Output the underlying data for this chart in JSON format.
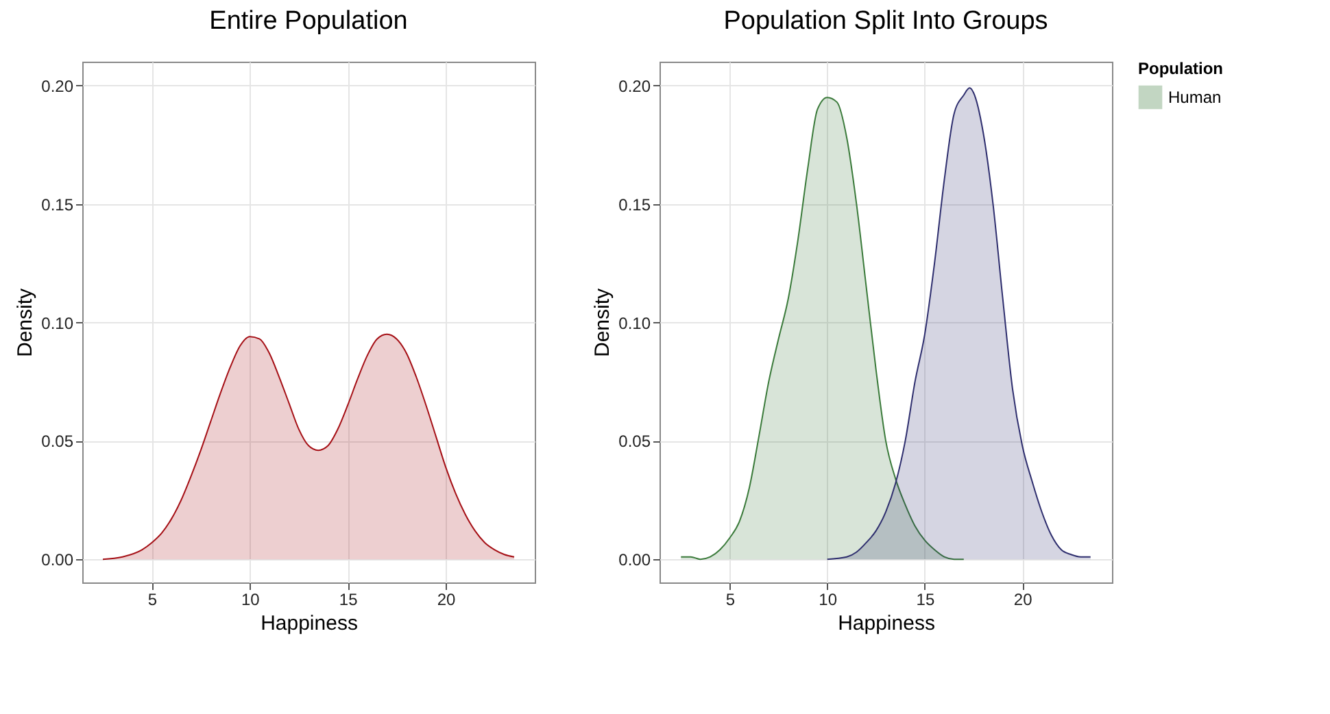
{
  "chart_data": [
    {
      "type": "area",
      "title": "Entire Population",
      "xlabel": "Happiness",
      "ylabel": "Density",
      "grid": true,
      "legend": false,
      "xlim": [
        1.45,
        24.55
      ],
      "ylim": [
        -0.0098,
        0.2101
      ],
      "xticks": [
        5,
        10,
        15,
        20
      ],
      "yticks": [
        {
          "value": 0,
          "label": "0.00"
        },
        {
          "value": 0.05,
          "label": "0.05"
        },
        {
          "value": 0.1,
          "label": "0.10"
        },
        {
          "value": 0.15,
          "label": "0.15"
        },
        {
          "value": 0.2,
          "label": "0.20"
        }
      ],
      "series": [
        {
          "color": "#a50f15",
          "x": [
            2.5,
            3.5,
            4.5,
            5,
            5.5,
            6,
            6.5,
            7,
            7.5,
            8,
            8.5,
            9,
            9.5,
            10,
            10.5,
            11,
            11.5,
            12,
            12.5,
            13,
            13.5,
            14,
            14.5,
            15,
            15.5,
            16,
            16.5,
            17,
            17.5,
            18,
            18.5,
            19,
            19.5,
            20,
            20.5,
            21,
            21.5,
            22,
            22.5,
            23,
            23.5
          ],
          "values": [
            0,
            0.001,
            0.004,
            0.007,
            0.011,
            0.017,
            0.025,
            0.035,
            0.046,
            0.058,
            0.07,
            0.081,
            0.09,
            0.094,
            0.093,
            0.087,
            0.077,
            0.066,
            0.055,
            0.048,
            0.046,
            0.048,
            0.055,
            0.065,
            0.076,
            0.086,
            0.093,
            0.095,
            0.093,
            0.087,
            0.077,
            0.065,
            0.052,
            0.039,
            0.028,
            0.019,
            0.012,
            0.007,
            0.004,
            0.002,
            0.001
          ]
        }
      ]
    },
    {
      "type": "area",
      "title": "Population Split Into Groups",
      "xlabel": "Happiness",
      "ylabel": "Density",
      "grid": true,
      "legend": "right",
      "legend_title": "Population",
      "xlim": [
        1.4,
        24.6
      ],
      "ylim": [
        -0.0098,
        0.2101
      ],
      "xticks": [
        5,
        10,
        15,
        20
      ],
      "yticks": [
        {
          "value": 0,
          "label": "0.00"
        },
        {
          "value": 0.05,
          "label": "0.05"
        },
        {
          "value": 0.1,
          "label": "0.10"
        },
        {
          "value": 0.15,
          "label": "0.15"
        },
        {
          "value": 0.2,
          "label": "0.20"
        }
      ],
      "series": [
        {
          "name": "Human",
          "color": "#3a7a3a",
          "x": [
            2.5,
            3,
            3.5,
            4,
            4.5,
            5,
            5.5,
            6,
            6.5,
            7,
            7.5,
            8,
            8.5,
            9,
            9.5,
            10,
            10.5,
            11,
            11.5,
            12,
            12.5,
            13,
            13.5,
            14,
            14.5,
            15,
            15.5,
            16,
            16.5,
            17
          ],
          "values": [
            0.001,
            0.001,
            0,
            0.001,
            0.004,
            0.009,
            0.016,
            0.03,
            0.052,
            0.075,
            0.093,
            0.11,
            0.135,
            0.165,
            0.19,
            0.195,
            0.193,
            0.178,
            0.15,
            0.115,
            0.08,
            0.05,
            0.034,
            0.023,
            0.014,
            0.008,
            0.004,
            0.001,
            0,
            0
          ]
        },
        {
          "color": "#2e2e6e",
          "x": [
            10,
            11,
            11.5,
            12,
            12.5,
            13,
            13.5,
            14,
            14.5,
            15,
            15.5,
            16,
            16.5,
            17,
            17.3,
            17.5,
            18,
            18.5,
            19,
            19.5,
            20,
            20.5,
            21,
            21.5,
            22,
            22.5,
            23,
            23.5
          ],
          "values": [
            0,
            0.001,
            0.003,
            0.007,
            0.012,
            0.02,
            0.032,
            0.05,
            0.075,
            0.095,
            0.125,
            0.16,
            0.188,
            0.196,
            0.199,
            0.197,
            0.18,
            0.15,
            0.11,
            0.072,
            0.048,
            0.033,
            0.02,
            0.01,
            0.004,
            0.002,
            0.001,
            0.001
          ]
        }
      ]
    }
  ]
}
